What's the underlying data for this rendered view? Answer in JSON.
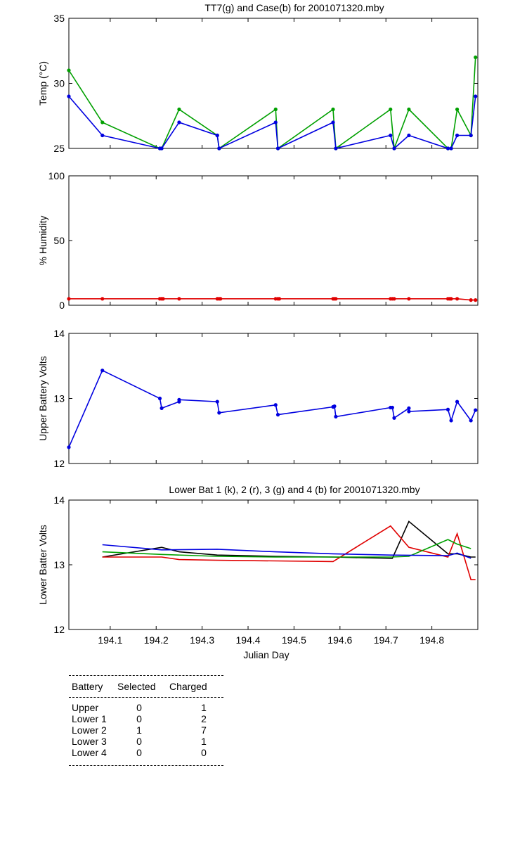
{
  "chart_data": [
    {
      "type": "line",
      "title": "TT7(g) and Case(b) for 2001071320.mby",
      "xlabel": "",
      "ylabel": "Temp  (°C)",
      "xlim": [
        194.01,
        194.9
      ],
      "ylim": [
        25,
        35
      ],
      "yticks": [
        25,
        30,
        35
      ],
      "series": [
        {
          "name": "TT7",
          "color": "#00a000",
          "marker": true,
          "x": [
            194.01,
            194.083,
            194.208,
            194.212,
            194.25,
            194.333,
            194.337,
            194.46,
            194.465,
            194.585,
            194.591,
            194.71,
            194.718,
            194.75,
            194.835,
            194.842,
            194.855,
            194.885,
            194.895
          ],
          "y": [
            31,
            27,
            25,
            25,
            28,
            26,
            25,
            28,
            25,
            28,
            25,
            28,
            25,
            28,
            25,
            25,
            28,
            26,
            32
          ]
        },
        {
          "name": "Case",
          "color": "#0000e0",
          "marker": true,
          "x": [
            194.01,
            194.083,
            194.208,
            194.212,
            194.25,
            194.333,
            194.337,
            194.46,
            194.465,
            194.585,
            194.591,
            194.71,
            194.718,
            194.75,
            194.835,
            194.842,
            194.855,
            194.885,
            194.895
          ],
          "y": [
            29,
            26,
            25,
            25,
            27,
            26,
            25,
            27,
            25,
            27,
            25,
            26,
            25,
            26,
            25,
            25,
            26,
            26,
            29
          ]
        }
      ]
    },
    {
      "type": "line",
      "title": "",
      "xlabel": "",
      "ylabel": "% Humidity",
      "xlim": [
        194.01,
        194.9
      ],
      "ylim": [
        0,
        100
      ],
      "yticks": [
        0,
        50,
        100
      ],
      "series": [
        {
          "name": "Humidity",
          "color": "#e00000",
          "marker": true,
          "x": [
            194.01,
            194.083,
            194.208,
            194.212,
            194.215,
            194.25,
            194.333,
            194.337,
            194.34,
            194.46,
            194.465,
            194.468,
            194.585,
            194.588,
            194.591,
            194.71,
            194.714,
            194.718,
            194.75,
            194.835,
            194.839,
            194.842,
            194.855,
            194.885,
            194.895
          ],
          "y": [
            5,
            5,
            5,
            5,
            5,
            5,
            5,
            5,
            5,
            5,
            5,
            5,
            5,
            5,
            5,
            5,
            5,
            5,
            5,
            5,
            5,
            5,
            5,
            4,
            4
          ]
        }
      ]
    },
    {
      "type": "line",
      "title": "",
      "xlabel": "",
      "ylabel": "Upper Battery Volts",
      "xlim": [
        194.01,
        194.9
      ],
      "ylim": [
        12,
        14
      ],
      "yticks": [
        12,
        13,
        14
      ],
      "series": [
        {
          "name": "Upper",
          "color": "#0000e0",
          "marker": true,
          "x": [
            194.01,
            194.083,
            194.208,
            194.212,
            194.25,
            194.25,
            194.333,
            194.337,
            194.46,
            194.465,
            194.585,
            194.588,
            194.591,
            194.71,
            194.714,
            194.718,
            194.75,
            194.75,
            194.835,
            194.842,
            194.855,
            194.885,
            194.895
          ],
          "y": [
            12.25,
            13.43,
            13.0,
            12.85,
            12.95,
            12.98,
            12.95,
            12.78,
            12.9,
            12.75,
            12.87,
            12.88,
            12.72,
            12.86,
            12.86,
            12.7,
            12.85,
            12.8,
            12.83,
            12.66,
            12.95,
            12.66,
            12.82
          ]
        }
      ]
    },
    {
      "type": "line",
      "title": "Lower Bat 1 (k), 2 (r), 3 (g) and 4 (b) for 2001071320.mby",
      "xlabel": "Julian Day",
      "ylabel": "Lower Batter Volts",
      "xlim": [
        194.01,
        194.9
      ],
      "ylim": [
        12,
        14
      ],
      "yticks": [
        12,
        13,
        14
      ],
      "xticks": [
        194.1,
        194.2,
        194.3,
        194.4,
        194.5,
        194.6,
        194.7,
        194.8
      ],
      "xtick_labels": [
        "194.1",
        "194.2",
        "194.3",
        "194.4",
        "194.5",
        "194.6",
        "194.7",
        "194.8"
      ],
      "series": [
        {
          "name": "Lower 1",
          "color": "#000000",
          "marker": false,
          "x": [
            194.083,
            194.212,
            194.25,
            194.333,
            194.46,
            194.585,
            194.71,
            194.714,
            194.75,
            194.835,
            194.855,
            194.885,
            194.895
          ],
          "y": [
            13.12,
            13.27,
            13.2,
            13.15,
            13.13,
            13.12,
            13.1,
            13.1,
            13.67,
            13.17,
            13.17,
            13.12,
            13.12
          ]
        },
        {
          "name": "Lower 2",
          "color": "#e00000",
          "marker": false,
          "x": [
            194.083,
            194.212,
            194.25,
            194.333,
            194.46,
            194.585,
            194.71,
            194.75,
            194.835,
            194.855,
            194.885,
            194.895
          ],
          "y": [
            13.12,
            13.12,
            13.08,
            13.07,
            13.06,
            13.05,
            13.6,
            13.27,
            13.12,
            13.48,
            12.77,
            12.77
          ]
        },
        {
          "name": "Lower 3",
          "color": "#00a000",
          "marker": false,
          "x": [
            194.083,
            194.212,
            194.333,
            194.46,
            194.585,
            194.71,
            194.75,
            194.835,
            194.855,
            194.885
          ],
          "y": [
            13.2,
            13.16,
            13.13,
            13.12,
            13.12,
            13.12,
            13.13,
            13.39,
            13.32,
            13.25
          ]
        },
        {
          "name": "Lower 4",
          "color": "#0000e0",
          "marker": false,
          "x": [
            194.083,
            194.212,
            194.333,
            194.46,
            194.585,
            194.71,
            194.835,
            194.855,
            194.885
          ],
          "y": [
            13.31,
            13.23,
            13.24,
            13.2,
            13.17,
            13.15,
            13.14,
            13.18,
            13.1
          ]
        }
      ]
    }
  ],
  "battery_table": {
    "headers": [
      "Battery",
      "Selected",
      "Charged"
    ],
    "rows": [
      [
        "Upper",
        "0",
        "1"
      ],
      [
        "Lower 1",
        "0",
        "2"
      ],
      [
        "Lower 2",
        "1",
        "7"
      ],
      [
        "Lower 3",
        "0",
        "1"
      ],
      [
        "Lower 4",
        "0",
        "0"
      ]
    ]
  }
}
